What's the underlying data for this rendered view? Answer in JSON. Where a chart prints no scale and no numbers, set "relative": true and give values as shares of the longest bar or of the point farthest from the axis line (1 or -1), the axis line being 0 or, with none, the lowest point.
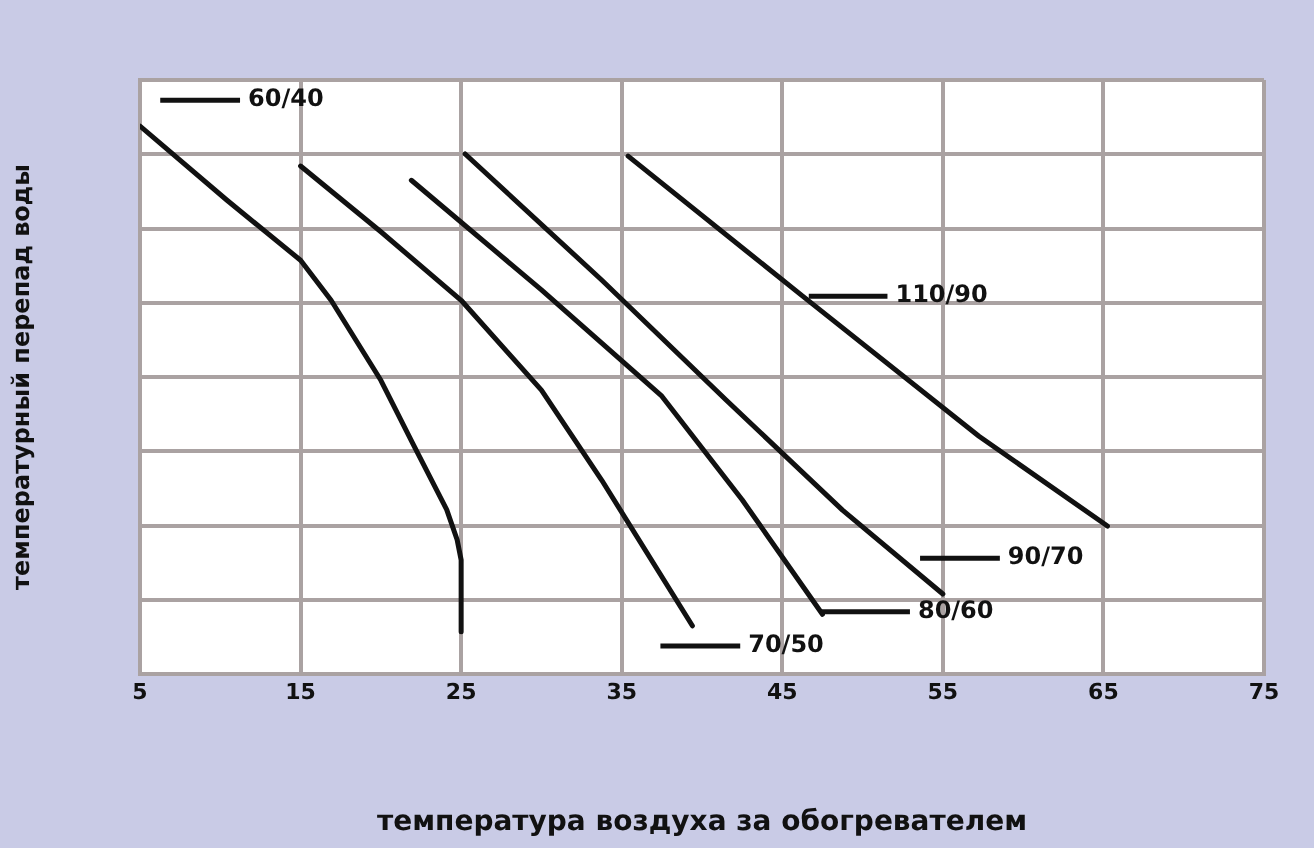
{
  "chart_data": {
    "type": "line",
    "xlabel": "температура воздуха за обогревателем",
    "ylabel": "температурный перепад воды",
    "relative": true,
    "xlim": [
      5,
      75
    ],
    "xticks": [
      5,
      15,
      25,
      35,
      45,
      55,
      65,
      75
    ],
    "tick_labels": "x",
    "grid": true,
    "legend": "top left",
    "marker": "none",
    "line_style": "solid",
    "series": [
      {
        "name": "60/40",
        "color": "#111111",
        "x": [
          5,
          10.4,
          15,
          16.9,
          20,
          22,
          24.1,
          24.75,
          25,
          25
        ],
        "values": [
          1,
          0.865,
          0.755,
          0.682,
          0.536,
          0.42,
          0.3,
          0.245,
          0.208,
          0.077
        ]
      },
      {
        "name": "70/50",
        "color": "#111111",
        "x": [
          15,
          20,
          25,
          30,
          33.75,
          39.4
        ],
        "values": [
          0.927,
          0.807,
          0.682,
          0.518,
          0.354,
          0.088
        ]
      },
      {
        "name": "80/60",
        "color": "#111111",
        "x": [
          21.9,
          30,
          37.5,
          42.5,
          47.5
        ],
        "values": [
          0.901,
          0.701,
          0.507,
          0.318,
          0.109
        ]
      },
      {
        "name": "90/70",
        "color": "#111111",
        "x": [
          25.25,
          33.75,
          41.5,
          48.75,
          55
        ],
        "values": [
          0.949,
          0.719,
          0.5,
          0.299,
          0.146
        ]
      },
      {
        "name": "110/90",
        "color": "#111111",
        "x": [
          35.4,
          46.25,
          57.25,
          65.25
        ],
        "values": [
          0.945,
          0.69,
          0.434,
          0.27
        ]
      }
    ]
  }
}
